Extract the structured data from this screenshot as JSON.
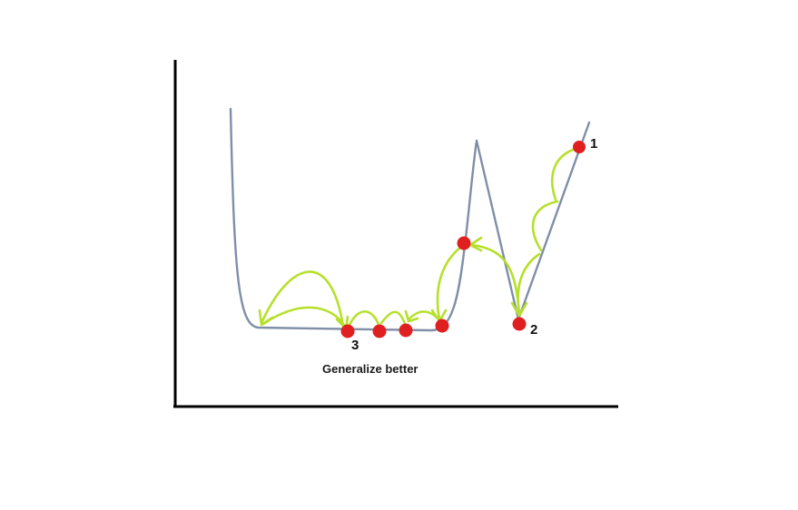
{
  "diagram": {
    "labels": {
      "point_1": "1",
      "point_2": "2",
      "point_3": "3",
      "caption": "Generalize better"
    },
    "colors": {
      "axes": "#000000",
      "curve": "#7f8fa8",
      "arrows": "#b6e02a",
      "points": "#e02020"
    },
    "icons": {
      "points": "red-dot-marker",
      "arrows": "curved-arrow"
    }
  }
}
